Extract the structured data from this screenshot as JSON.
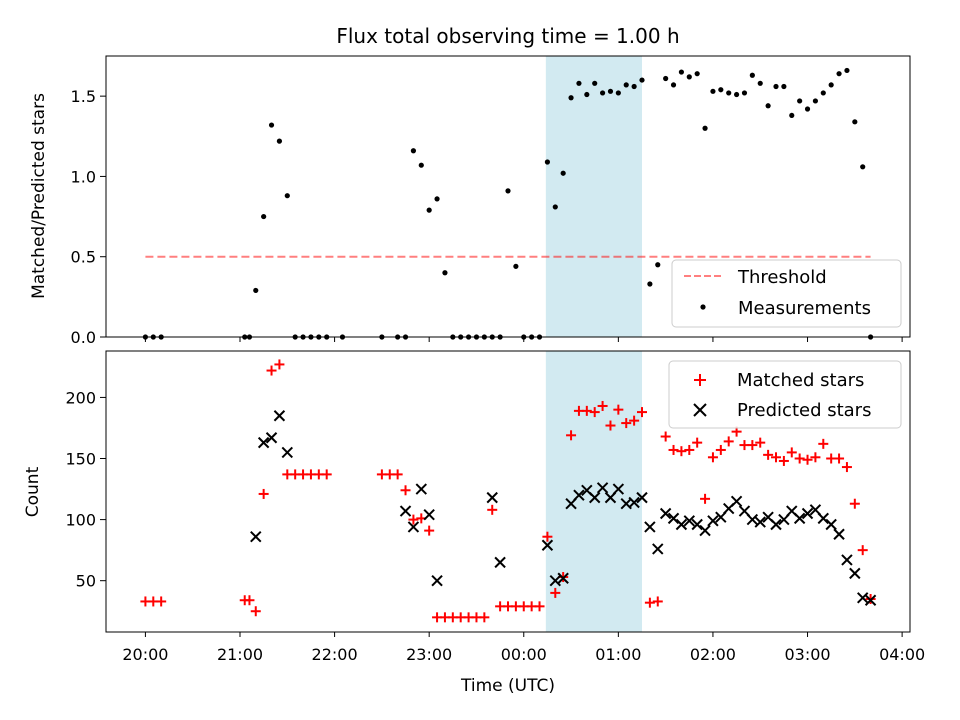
{
  "figure": {
    "title": "Flux total observing time = 1.00 h",
    "xlabel": "Time (UTC)"
  },
  "colors": {
    "highlight": "#add8e6",
    "threshold": "#ff0000",
    "measurement": "#000000",
    "matched": "#ff0000",
    "predicted": "#000000"
  },
  "chart_data": [
    {
      "type": "scatter",
      "panel": "top",
      "ylabel": "Matched/Predicted stars",
      "xlim": [
        "19:35",
        "04:05"
      ],
      "ylim": [
        0,
        1.75
      ],
      "yticks": [
        0.0,
        0.5,
        1.0,
        1.5
      ],
      "ytick_labels": [
        "0.0",
        "0.5",
        "1.0",
        "1.5"
      ],
      "xtick_labels": [
        "20:00",
        "21:00",
        "22:00",
        "23:00",
        "00:00",
        "01:00",
        "02:00",
        "03:00",
        "04:00"
      ],
      "highlight_span": [
        "00:14",
        "01:15"
      ],
      "threshold": {
        "name": "Threshold",
        "value": 0.5,
        "x_range": [
          "20:00",
          "03:40"
        ],
        "style": "dashed"
      },
      "legend": {
        "position": "lower right",
        "entries": [
          "Threshold",
          "Measurements"
        ]
      },
      "series": [
        {
          "name": "Measurements",
          "x": [
            "20:00",
            "20:05",
            "20:10",
            "21:03",
            "21:06",
            "21:10",
            "21:15",
            "21:20",
            "21:25",
            "21:30",
            "21:35",
            "21:40",
            "21:45",
            "21:50",
            "21:55",
            "22:05",
            "22:30",
            "22:40",
            "22:45",
            "22:50",
            "22:55",
            "23:00",
            "23:05",
            "23:10",
            "23:15",
            "23:20",
            "23:25",
            "23:30",
            "23:35",
            "23:40",
            "23:45",
            "23:50",
            "23:55",
            "00:00",
            "00:05",
            "00:10",
            "00:15",
            "00:20",
            "00:25",
            "00:30",
            "00:35",
            "00:40",
            "00:45",
            "00:50",
            "00:55",
            "01:00",
            "01:05",
            "01:10",
            "01:15",
            "01:20",
            "01:25",
            "01:30",
            "01:35",
            "01:40",
            "01:45",
            "01:50",
            "01:55",
            "02:00",
            "02:05",
            "02:10",
            "02:15",
            "02:20",
            "02:25",
            "02:30",
            "02:35",
            "02:40",
            "02:45",
            "02:50",
            "02:55",
            "03:00",
            "03:05",
            "03:10",
            "03:15",
            "03:20",
            "03:25",
            "03:30",
            "03:35",
            "03:40"
          ],
          "y": [
            0.0,
            0.0,
            0.0,
            0.0,
            0.0,
            0.29,
            0.75,
            1.32,
            1.22,
            0.88,
            0.0,
            0.0,
            0.0,
            0.0,
            0.0,
            0.0,
            0.0,
            0.0,
            0.0,
            1.16,
            1.07,
            0.79,
            0.86,
            0.4,
            0.0,
            0.0,
            0.0,
            0.0,
            0.0,
            0.0,
            0.0,
            0.91,
            0.44,
            0.0,
            0.0,
            0.0,
            1.09,
            0.81,
            1.02,
            1.49,
            1.58,
            1.51,
            1.58,
            1.52,
            1.53,
            1.52,
            1.57,
            1.56,
            1.6,
            0.33,
            0.45,
            1.61,
            1.57,
            1.65,
            1.62,
            1.64,
            1.3,
            1.53,
            1.54,
            1.52,
            1.51,
            1.52,
            1.63,
            1.58,
            1.44,
            1.56,
            1.56,
            1.38,
            1.47,
            1.42,
            1.47,
            1.52,
            1.57,
            1.64,
            1.66,
            1.34,
            1.06,
            0.0
          ]
        }
      ]
    },
    {
      "type": "scatter",
      "panel": "bottom",
      "ylabel": "Count",
      "xlabel": "Time (UTC)",
      "xlim": [
        "19:35",
        "04:05"
      ],
      "ylim": [
        8,
        238
      ],
      "yticks": [
        50,
        100,
        150,
        200
      ],
      "ytick_labels": [
        "50",
        "100",
        "150",
        "200"
      ],
      "xtick_labels": [
        "20:00",
        "21:00",
        "22:00",
        "23:00",
        "00:00",
        "01:00",
        "02:00",
        "03:00",
        "04:00"
      ],
      "highlight_span": [
        "00:14",
        "01:15"
      ],
      "legend": {
        "position": "upper right",
        "entries": [
          "Matched stars",
          "Predicted stars"
        ]
      },
      "series": [
        {
          "name": "Matched stars",
          "marker": "+",
          "x": [
            "20:00",
            "20:05",
            "20:10",
            "21:03",
            "21:06",
            "21:10",
            "21:15",
            "21:20",
            "21:25",
            "21:30",
            "21:35",
            "21:40",
            "21:45",
            "21:50",
            "21:55",
            "22:30",
            "22:35",
            "22:40",
            "22:45",
            "22:50",
            "22:55",
            "23:00",
            "23:05",
            "23:10",
            "23:15",
            "23:20",
            "23:25",
            "23:30",
            "23:35",
            "23:40",
            "23:45",
            "23:50",
            "23:55",
            "00:00",
            "00:05",
            "00:10",
            "00:15",
            "00:20",
            "00:25",
            "00:30",
            "00:35",
            "00:40",
            "00:45",
            "00:50",
            "00:55",
            "01:00",
            "01:05",
            "01:10",
            "01:15",
            "01:20",
            "01:25",
            "01:30",
            "01:35",
            "01:40",
            "01:45",
            "01:50",
            "01:55",
            "02:00",
            "02:05",
            "02:10",
            "02:15",
            "02:20",
            "02:25",
            "02:30",
            "02:35",
            "02:40",
            "02:45",
            "02:50",
            "02:55",
            "03:00",
            "03:05",
            "03:10",
            "03:15",
            "03:20",
            "03:25",
            "03:30",
            "03:35",
            "03:40"
          ],
          "y": [
            33,
            33,
            33,
            34,
            34,
            25,
            121,
            222,
            227,
            137,
            137,
            137,
            137,
            137,
            137,
            137,
            137,
            137,
            124,
            100,
            101,
            91,
            20,
            20,
            20,
            20,
            20,
            20,
            20,
            108,
            29,
            29,
            29,
            29,
            29,
            29,
            86,
            40,
            53,
            169,
            189,
            189,
            188,
            193,
            177,
            190,
            179,
            181,
            188,
            32,
            33,
            168,
            157,
            156,
            157,
            163,
            117,
            151,
            157,
            164,
            172,
            161,
            161,
            163,
            153,
            151,
            148,
            155,
            150,
            149,
            151,
            162,
            150,
            150,
            143,
            113,
            75,
            35
          ]
        },
        {
          "name": "Predicted stars",
          "marker": "x",
          "x": [
            "21:10",
            "21:15",
            "21:20",
            "21:25",
            "21:30",
            "22:45",
            "22:50",
            "22:55",
            "23:00",
            "23:05",
            "23:40",
            "23:45",
            "00:15",
            "00:20",
            "00:25",
            "00:30",
            "00:35",
            "00:40",
            "00:45",
            "00:50",
            "00:55",
            "01:00",
            "01:05",
            "01:10",
            "01:15",
            "01:20",
            "01:25",
            "01:30",
            "01:35",
            "01:40",
            "01:45",
            "01:50",
            "01:55",
            "02:00",
            "02:05",
            "02:10",
            "02:15",
            "02:20",
            "02:25",
            "02:30",
            "02:35",
            "02:40",
            "02:45",
            "02:50",
            "02:55",
            "03:00",
            "03:05",
            "03:10",
            "03:15",
            "03:20",
            "03:25",
            "03:30",
            "03:35",
            "03:40"
          ],
          "y": [
            86,
            163,
            167,
            185,
            155,
            107,
            94,
            125,
            104,
            50,
            118,
            65,
            79,
            50,
            52,
            113,
            120,
            124,
            118,
            126,
            118,
            125,
            113,
            114,
            118,
            94,
            76,
            105,
            101,
            96,
            99,
            96,
            91,
            99,
            102,
            109,
            115,
            107,
            100,
            98,
            102,
            96,
            100,
            107,
            101,
            105,
            108,
            101,
            96,
            88,
            67,
            56,
            36,
            34
          ]
        }
      ]
    }
  ]
}
